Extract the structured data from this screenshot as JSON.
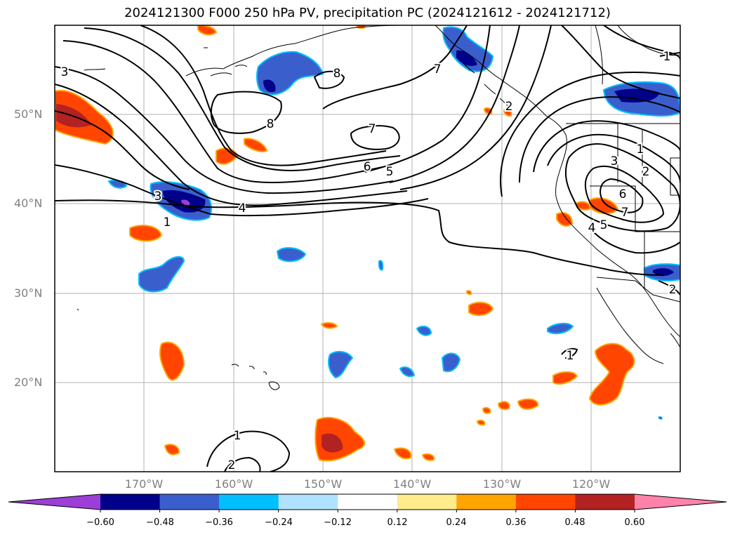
{
  "title": "2024121300 F000 250 hPa PV, precipitation PC (2024121612 - 2024121712)",
  "lat_labels": [
    "50°N",
    "40°N",
    "30°N",
    "20°N"
  ],
  "lon_labels": [
    "170°W",
    "160°W",
    "150°W",
    "140°W",
    "130°W",
    "120°W"
  ],
  "contour_labels": [
    "1",
    "2",
    "3",
    "4",
    "5",
    "6",
    "7",
    "8"
  ],
  "colorbar": {
    "ticks": [
      "−0.60",
      "−0.48",
      "−0.36",
      "−0.24",
      "−0.12",
      "0.12",
      "0.24",
      "0.36",
      "0.48",
      "0.60"
    ],
    "colors": [
      "#9b3fd6",
      "#00008b",
      "#3a5fcd",
      "#00bfff",
      "#b0e2ff",
      "#ffffff",
      "#ffec8b",
      "#ffa500",
      "#ff4500",
      "#b22222",
      "#ff82ab"
    ]
  },
  "colors": {
    "neg_strong": "#00008b",
    "neg_mid": "#3a5fcd",
    "neg_light": "#00bfff",
    "pos_light": "#ffa500",
    "pos_mid": "#ff4500",
    "pos_strong": "#b22222",
    "extreme_neg": "#9b3fd6"
  }
}
